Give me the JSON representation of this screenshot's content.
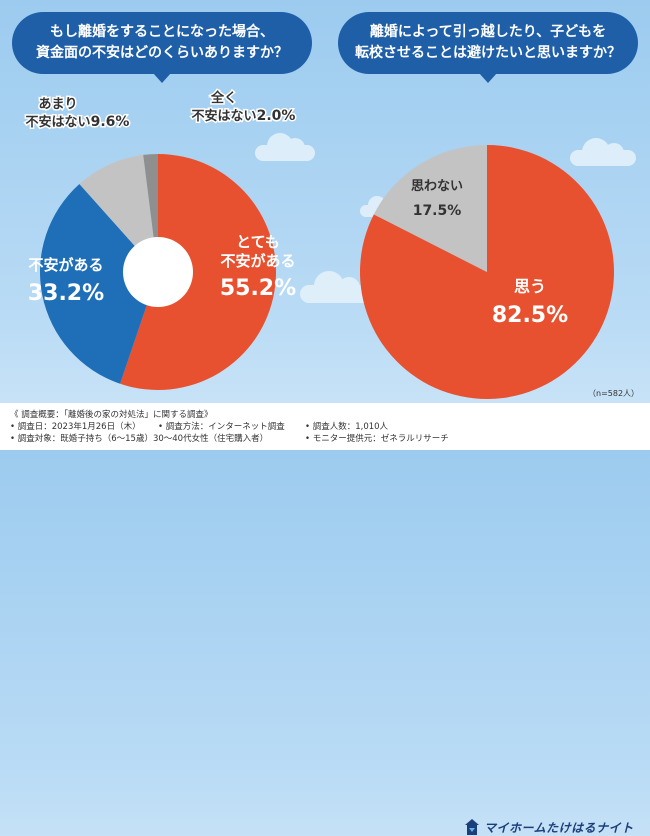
{
  "header": {
    "q1": "もし離婚をすることになった場合、\n資金面の不安はどのくらいありますか？",
    "q2": "離婚によって引っ越したり、子どもを\n転校させることは避けたいと思いますか？"
  },
  "chart_data": [
    {
      "type": "pie",
      "title": "もし離婚をすることになった場合、資金面の不安はどのくらいありますか？",
      "donut": true,
      "slices": [
        {
          "label": "とても\n不安がある",
          "value": 55.2,
          "display": "55.2%",
          "color": "#e8512f"
        },
        {
          "label": "不安がある",
          "value": 33.2,
          "display": "33.2%",
          "color": "#1f6fb8"
        },
        {
          "label": "あまり\n不安はない",
          "value": 9.6,
          "display": "9.6%",
          "color": "#c3c3c3"
        },
        {
          "label": "全く\n不安はない",
          "value": 2.0,
          "display": "2.0%",
          "color": "#8f8f8f"
        }
      ]
    },
    {
      "type": "pie",
      "title": "離婚によって引っ越したり、子どもを転校させることは避けたいと思いますか？",
      "donut": false,
      "slices": [
        {
          "label": "思う",
          "value": 82.5,
          "display": "82.5%",
          "color": "#e8512f"
        },
        {
          "label": "思わない",
          "value": 17.5,
          "display": "17.5%",
          "color": "#c3c3c3"
        }
      ]
    }
  ],
  "footer": {
    "overview": "《 調査概要：「離婚後の家の対処法」に関する調査》",
    "date": "• 調査日：2023年1月26日（木）",
    "method": "• 調査方法：インターネット調査",
    "count": "• 調査人数：1,010人",
    "target": "• 調査対象：既婚子持ち（6～15歳）30～40代女性（住宅購入者）",
    "provider": "• モニター提供元：ゼネラルリサーチ",
    "n": "（n=582人）",
    "logo": "マイホームたけはるナイト"
  },
  "colors": {
    "orange": "#e8512f",
    "blue": "#1f6fb8",
    "gray": "#c3c3c3",
    "dark_gray": "#8f8f8f",
    "navy": "#1f5fa8"
  }
}
